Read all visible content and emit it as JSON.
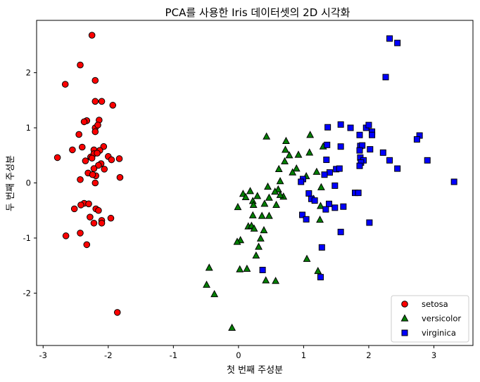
{
  "chart_data": {
    "type": "scatter",
    "title": "PCA를 사용한 Iris 데이터셋의 2D 시각화",
    "xlabel": "첫 번째 주성분",
    "ylabel": "두 번째 주성분",
    "xlim": [
      -3.1,
      3.6
    ],
    "ylim": [
      -2.95,
      2.95
    ],
    "xticks": [
      -3,
      -2,
      -1,
      0,
      1,
      2,
      3
    ],
    "yticks": [
      -2,
      -1,
      0,
      1,
      2
    ],
    "grid": false,
    "legend_position": "bottom-right",
    "series": [
      {
        "name": "setosa",
        "marker": "circle",
        "color": "#ff0000",
        "points": [
          [
            -2.25,
            2.68
          ],
          [
            -2.43,
            2.14
          ],
          [
            -2.2,
            1.86
          ],
          [
            -2.66,
            1.79
          ],
          [
            -2.1,
            1.48
          ],
          [
            -2.2,
            1.48
          ],
          [
            -1.93,
            1.41
          ],
          [
            -2.33,
            1.13
          ],
          [
            -2.37,
            1.11
          ],
          [
            -2.14,
            1.14
          ],
          [
            -2.2,
            1.0
          ],
          [
            -2.16,
            1.05
          ],
          [
            -2.2,
            0.93
          ],
          [
            -2.45,
            0.88
          ],
          [
            -2.4,
            0.65
          ],
          [
            -2.07,
            0.66
          ],
          [
            -2.55,
            0.6
          ],
          [
            -2.22,
            0.6
          ],
          [
            -2.13,
            0.59
          ],
          [
            -2.27,
            0.47
          ],
          [
            -2.22,
            0.53
          ],
          [
            -2.17,
            0.54
          ],
          [
            -2.25,
            0.45
          ],
          [
            -2.0,
            0.48
          ],
          [
            -2.78,
            0.46
          ],
          [
            -1.83,
            0.44
          ],
          [
            -1.95,
            0.42
          ],
          [
            -2.35,
            0.4
          ],
          [
            -2.11,
            0.35
          ],
          [
            -2.15,
            0.32
          ],
          [
            -2.22,
            0.26
          ],
          [
            -2.06,
            0.25
          ],
          [
            -2.31,
            0.18
          ],
          [
            -2.19,
            0.13
          ],
          [
            -2.24,
            0.15
          ],
          [
            -2.43,
            0.06
          ],
          [
            -1.82,
            0.1
          ],
          [
            -2.2,
            0.0
          ],
          [
            -2.52,
            -0.47
          ],
          [
            -2.37,
            -0.37
          ],
          [
            -2.3,
            -0.38
          ],
          [
            -2.42,
            -0.4
          ],
          [
            -2.19,
            -0.47
          ],
          [
            -2.15,
            -0.5
          ],
          [
            -2.28,
            -0.62
          ],
          [
            -1.96,
            -0.64
          ],
          [
            -2.1,
            -0.68
          ],
          [
            -2.1,
            -0.73
          ],
          [
            -2.22,
            -0.73
          ],
          [
            -2.43,
            -0.91
          ],
          [
            -2.65,
            -0.96
          ],
          [
            -2.33,
            -1.12
          ],
          [
            -1.86,
            -2.35
          ]
        ]
      },
      {
        "name": "versicolor",
        "marker": "triangle",
        "color": "#008000",
        "points": [
          [
            0.43,
            0.84
          ],
          [
            1.1,
            0.87
          ],
          [
            0.73,
            0.76
          ],
          [
            1.3,
            0.66
          ],
          [
            0.72,
            0.6
          ],
          [
            0.78,
            0.5
          ],
          [
            0.92,
            0.51
          ],
          [
            0.71,
            0.39
          ],
          [
            1.09,
            0.55
          ],
          [
            0.89,
            0.26
          ],
          [
            0.62,
            0.25
          ],
          [
            0.83,
            0.19
          ],
          [
            1.2,
            0.2
          ],
          [
            1.04,
            0.12
          ],
          [
            0.64,
            0.03
          ],
          [
            0.45,
            -0.07
          ],
          [
            0.18,
            -0.15
          ],
          [
            0.07,
            -0.2
          ],
          [
            0.11,
            -0.26
          ],
          [
            0.61,
            -0.12
          ],
          [
            1.27,
            -0.08
          ],
          [
            0.56,
            -0.16
          ],
          [
            0.29,
            -0.24
          ],
          [
            0.69,
            -0.25
          ],
          [
            1.15,
            -0.29
          ],
          [
            0.22,
            -0.33
          ],
          [
            0.47,
            -0.27
          ],
          [
            0.4,
            -0.38
          ],
          [
            0.23,
            -0.4
          ],
          [
            0.64,
            -0.22
          ],
          [
            0.58,
            -0.4
          ],
          [
            -0.01,
            -0.44
          ],
          [
            0.47,
            -0.6
          ],
          [
            0.22,
            -0.59
          ],
          [
            0.36,
            -0.6
          ],
          [
            1.26,
            -0.42
          ],
          [
            1.25,
            -0.67
          ],
          [
            0.15,
            -0.79
          ],
          [
            0.2,
            -0.78
          ],
          [
            0.24,
            -0.83
          ],
          [
            0.39,
            -0.86
          ],
          [
            0.34,
            -1.01
          ],
          [
            0.31,
            -1.16
          ],
          [
            0.03,
            -1.04
          ],
          [
            -0.02,
            -1.07
          ],
          [
            0.27,
            -1.32
          ],
          [
            1.05,
            -1.38
          ],
          [
            1.22,
            -1.6
          ],
          [
            0.02,
            -1.57
          ],
          [
            0.13,
            -1.56
          ],
          [
            0.42,
            -1.77
          ],
          [
            0.57,
            -1.78
          ],
          [
            -0.45,
            -1.54
          ],
          [
            -0.49,
            -1.85
          ],
          [
            -0.37,
            -2.02
          ],
          [
            -0.1,
            -2.63
          ]
        ]
      },
      {
        "name": "virginica",
        "marker": "square",
        "color": "#0000ff",
        "points": [
          [
            2.32,
            2.62
          ],
          [
            2.44,
            2.54
          ],
          [
            2.26,
            1.92
          ],
          [
            1.57,
            1.06
          ],
          [
            1.96,
            1.0
          ],
          [
            2.0,
            1.05
          ],
          [
            1.37,
            1.01
          ],
          [
            1.72,
            1.0
          ],
          [
            2.05,
            0.93
          ],
          [
            2.05,
            0.87
          ],
          [
            1.86,
            0.87
          ],
          [
            2.78,
            0.86
          ],
          [
            2.74,
            0.79
          ],
          [
            1.36,
            0.69
          ],
          [
            1.87,
            0.67
          ],
          [
            1.9,
            0.68
          ],
          [
            1.57,
            0.66
          ],
          [
            1.86,
            0.59
          ],
          [
            2.02,
            0.61
          ],
          [
            2.22,
            0.55
          ],
          [
            1.87,
            0.46
          ],
          [
            1.35,
            0.42
          ],
          [
            1.92,
            0.41
          ],
          [
            1.88,
            0.37
          ],
          [
            2.32,
            0.41
          ],
          [
            2.9,
            0.41
          ],
          [
            1.5,
            0.25
          ],
          [
            1.55,
            0.26
          ],
          [
            1.4,
            0.19
          ],
          [
            1.86,
            0.31
          ],
          [
            2.44,
            0.26
          ],
          [
            1.32,
            0.15
          ],
          [
            0.99,
            0.07
          ],
          [
            0.96,
            0.02
          ],
          [
            1.48,
            -0.05
          ],
          [
            3.31,
            0.02
          ],
          [
            1.08,
            -0.19
          ],
          [
            1.79,
            -0.18
          ],
          [
            1.84,
            -0.18
          ],
          [
            1.12,
            -0.29
          ],
          [
            1.17,
            -0.32
          ],
          [
            1.39,
            -0.38
          ],
          [
            1.48,
            -0.45
          ],
          [
            1.34,
            -0.48
          ],
          [
            1.61,
            -0.43
          ],
          [
            0.98,
            -0.58
          ],
          [
            1.04,
            -0.66
          ],
          [
            2.01,
            -0.72
          ],
          [
            1.57,
            -0.89
          ],
          [
            1.28,
            -1.17
          ],
          [
            0.37,
            -1.58
          ],
          [
            1.26,
            -1.71
          ]
        ]
      }
    ]
  }
}
